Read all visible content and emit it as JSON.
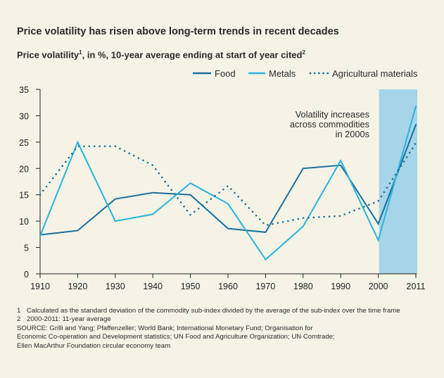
{
  "title": "Price volatility has risen above long-term trends in recent decades",
  "subtitle": {
    "part1": "Price volatility",
    "sup1": "1",
    "part2": ", in %, 10-year average ending at start of year cited",
    "sup2": "2"
  },
  "colors": {
    "background": "#f4f3e6",
    "food": "#1a6e9c",
    "metals": "#28b3dd",
    "agricultural": "#1a6e9c",
    "highlight": "#a6d4e8",
    "axis": "#231f20"
  },
  "annotation": [
    "Volatility increases",
    "across commodities",
    "in 2000s"
  ],
  "chart_data": {
    "type": "line",
    "title": "Price volatility has risen above long-term trends in recent decades",
    "ylabel": "Price volatility, in %, 10-year average ending at start of year cited",
    "xlabel": "",
    "x": [
      1910,
      1920,
      1930,
      1940,
      1950,
      1960,
      1970,
      1980,
      1990,
      2000,
      2011
    ],
    "x_tick_labels": [
      "1910",
      "1920",
      "1930",
      "1940",
      "1950",
      "1960",
      "1970",
      "1980",
      "1990",
      "2000",
      "2011"
    ],
    "ylim": [
      0,
      35
    ],
    "y_ticks": [
      0,
      5,
      10,
      15,
      20,
      25,
      30,
      35
    ],
    "grid": false,
    "legend_position": "top-right",
    "highlight_range": [
      2000,
      2011
    ],
    "series": [
      {
        "name": "Food",
        "style": "solid",
        "values": [
          7.4,
          8.2,
          14.2,
          15.4,
          15.0,
          8.6,
          7.9,
          20.0,
          20.6,
          9.5,
          28.3
        ]
      },
      {
        "name": "Metals",
        "style": "solid",
        "values": [
          7.2,
          25.0,
          10.0,
          11.3,
          17.2,
          13.3,
          2.7,
          9.0,
          21.5,
          6.4,
          31.8
        ]
      },
      {
        "name": "Agricultural materials",
        "style": "dotted",
        "values": [
          15.0,
          24.2,
          24.2,
          20.6,
          11.2,
          16.7,
          9.2,
          10.6,
          11.0,
          13.8,
          24.8
        ]
      }
    ]
  },
  "footnotes": [
    {
      "num": "1",
      "text": "Calculated as the standard deviation of the commodity sub-index divided by the average of the sub-index over the time frame"
    },
    {
      "num": "2",
      "text": "2000-2011: 11-year average"
    }
  ],
  "source": [
    "SOURCE: Grilli and Yang; Pfaffenzeller; World Bank; International Monetary Fund; Organisation for",
    "Economic Co-operation and Development statistics; UN Food and Agriculture Organization; UN Comtrade;",
    "Ellen MacArthur Foundation circular economy team"
  ]
}
